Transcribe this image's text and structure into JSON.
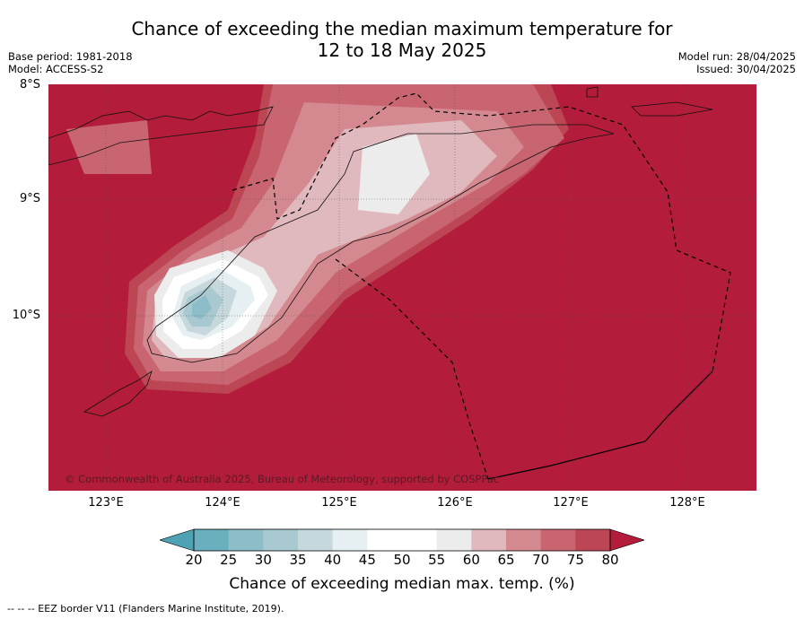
{
  "header": {
    "title_line1": "Chance of exceeding the median maximum temperature for",
    "title_line2": "12 to 18 May 2025",
    "base_period": "Base period: 1981-2018",
    "model": "Model: ACCESS-S2",
    "model_run": "Model run: 28/04/2025",
    "issued": "Issued: 30/04/2025"
  },
  "map": {
    "lat_labels": [
      "8°S",
      "9°S",
      "10°S"
    ],
    "lon_labels": [
      "123°E",
      "124°E",
      "125°E",
      "126°E",
      "127°E",
      "128°E"
    ],
    "copyright": "© Commonwealth of Australia 2025, Bureau of Meteorology, supported by COSPPac",
    "background_color": "#b31c3a"
  },
  "colorbar": {
    "ticks": [
      "20",
      "25",
      "30",
      "35",
      "40",
      "45",
      "50",
      "55",
      "60",
      "65",
      "70",
      "75",
      "80"
    ],
    "colors": [
      "#6aafbd",
      "#8cbdc8",
      "#a7c9cf",
      "#c7d8dc",
      "#e6eff1",
      "#ffffff",
      "#ffffff",
      "#ececec",
      "#e0b9bf",
      "#d4888f",
      "#c86571",
      "#bd4655"
    ],
    "low_extend_color": "#4ea2b3",
    "high_extend_color": "#b31c3a",
    "label": "Chance of exceeding median max. temp. (%)"
  },
  "footer": {
    "eez_note": "--  --  -- EEZ border V11 (Flanders Marine Institute, 2019)."
  }
}
